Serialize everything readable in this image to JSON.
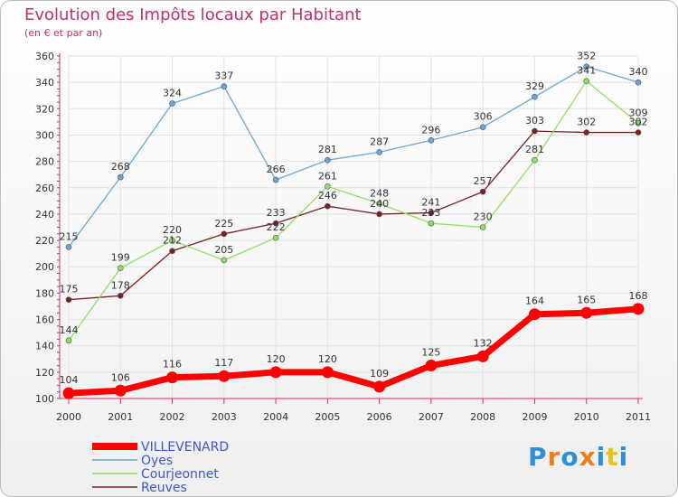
{
  "chart_data": {
    "type": "line",
    "title": "Evolution des Impôts locaux par Habitant",
    "subtitle": "(en € et par an)",
    "xlabel": "",
    "ylabel": "",
    "categories": [
      "2000",
      "2001",
      "2002",
      "2003",
      "2004",
      "2005",
      "2006",
      "2007",
      "2008",
      "2009",
      "2010",
      "2011"
    ],
    "ylim": [
      100,
      360
    ],
    "yticks": [
      100,
      120,
      140,
      160,
      180,
      200,
      220,
      240,
      260,
      280,
      300,
      320,
      340,
      360
    ],
    "grid": true,
    "legend_position": "bottom-left",
    "series": [
      {
        "name": "VILLEVENARD",
        "color": "#ff0000",
        "values": [
          104,
          106,
          116,
          117,
          120,
          120,
          109,
          125,
          132,
          164,
          165,
          168
        ]
      },
      {
        "name": "Oyes",
        "color": "#6aa5d6",
        "values": [
          215,
          268,
          324,
          337,
          266,
          281,
          287,
          296,
          306,
          329,
          352,
          340
        ]
      },
      {
        "name": "Courjeonnet",
        "color": "#8fe060",
        "values": [
          144,
          199,
          220,
          205,
          222,
          261,
          248,
          233,
          230,
          281,
          341,
          309
        ]
      },
      {
        "name": "Reuves",
        "color": "#7a1f24",
        "values": [
          175,
          178,
          212,
          225,
          233,
          246,
          240,
          241,
          257,
          303,
          302,
          302
        ]
      }
    ]
  },
  "branding": {
    "logo_letters": [
      "P",
      "r",
      "o",
      "x",
      "i",
      "t",
      "i"
    ],
    "logo_colors": [
      "#2e8fd8",
      "#f07d1a",
      "#2e8fd8",
      "#f07d1a",
      "#2e8fd8",
      "#e8c21a",
      "#2e8fd8"
    ]
  }
}
